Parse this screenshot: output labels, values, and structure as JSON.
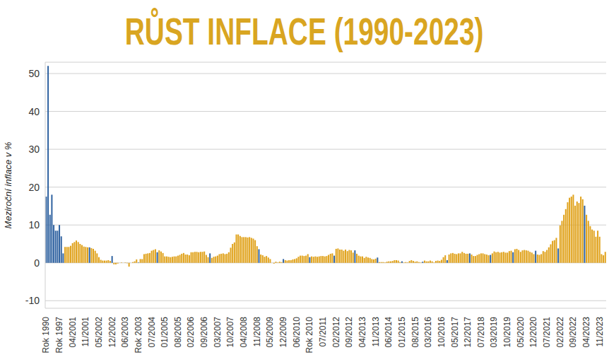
{
  "chart_data": {
    "type": "bar",
    "title": "RŮST INFLACE (1990-2023)",
    "y_label": "Meziroční inflace v %",
    "categories": [
      "Rok 1990",
      null,
      null,
      null,
      null,
      null,
      null,
      "Rok 1997",
      null,
      null,
      null,
      null,
      null,
      null,
      "04/2001",
      null,
      null,
      null,
      null,
      null,
      null,
      "11/2001",
      null,
      null,
      null,
      null,
      null,
      null,
      "05/2002",
      null,
      null,
      null,
      null,
      null,
      null,
      "12/2002",
      null,
      null,
      null,
      null,
      null,
      null,
      "06/2003",
      null,
      null,
      null,
      null,
      null,
      null,
      "Rok 2003",
      null,
      null,
      null,
      null,
      null,
      null,
      "07/2004",
      null,
      null,
      null,
      null,
      null,
      null,
      "01/2005",
      null,
      null,
      null,
      null,
      null,
      null,
      "08/2005",
      null,
      null,
      null,
      null,
      null,
      null,
      "02/2006",
      null,
      null,
      null,
      null,
      null,
      null,
      "09/2006",
      null,
      null,
      null,
      null,
      null,
      null,
      "03/2007",
      null,
      null,
      null,
      null,
      null,
      null,
      "10/2007",
      null,
      null,
      null,
      null,
      null,
      null,
      "04/2008",
      null,
      null,
      null,
      null,
      null,
      null,
      "11/2008",
      null,
      null,
      null,
      null,
      null,
      null,
      "05/2009",
      null,
      null,
      null,
      null,
      null,
      null,
      "12/2009",
      null,
      null,
      null,
      null,
      null,
      null,
      "06/2010",
      null,
      null,
      null,
      null,
      null,
      null,
      "Rok 2010",
      null,
      null,
      null,
      null,
      null,
      null,
      "07/2011",
      null,
      null,
      null,
      null,
      null,
      null,
      "02/2012",
      null,
      null,
      null,
      null,
      null,
      null,
      "09/2012",
      null,
      null,
      null,
      null,
      null,
      null,
      "04/2013",
      null,
      null,
      null,
      null,
      null,
      null,
      "11/2013",
      null,
      null,
      null,
      null,
      null,
      null,
      "06/2014",
      null,
      null,
      null,
      null,
      null,
      null,
      "01/2015",
      null,
      null,
      null,
      null,
      null,
      null,
      "08/2015",
      null,
      null,
      null,
      null,
      null,
      null,
      "03/2016",
      null,
      null,
      null,
      null,
      null,
      null,
      "10/2016",
      null,
      null,
      null,
      null,
      null,
      null,
      "05/2017",
      null,
      null,
      null,
      null,
      null,
      null,
      "12/2017",
      null,
      null,
      null,
      null,
      null,
      null,
      "07/2018",
      null,
      null,
      null,
      null,
      null,
      null,
      "03/2019",
      null,
      null,
      null,
      null,
      null,
      null,
      "10/2019",
      null,
      null,
      null,
      null,
      null,
      null,
      "05/2020",
      null,
      null,
      null,
      null,
      null,
      null,
      "12/2020",
      null,
      null,
      null,
      null,
      null,
      null,
      "07/2021",
      null,
      null,
      null,
      null,
      null,
      null,
      "02/2022",
      null,
      null,
      null,
      null,
      null,
      null,
      "09/2022",
      null,
      null,
      null,
      null,
      null,
      null,
      "04/2023",
      null,
      null,
      null,
      null,
      null,
      null,
      "11/2023",
      null,
      null,
      null
    ],
    "values": [
      17.5,
      52,
      12.7,
      18,
      10,
      8.5,
      8.5,
      10,
      7,
      2.5,
      4.2,
      4.2,
      4.2,
      4.5,
      5.2,
      5.5,
      5.9,
      5.5,
      5.0,
      4.7,
      4.3,
      4.2,
      4.1,
      4.1,
      3.9,
      3.7,
      3.2,
      2.5,
      1.5,
      0.8,
      0.6,
      0.6,
      0.6,
      0.7,
      0.5,
      1.8,
      -0.4,
      -0.4,
      -0.2,
      0.0,
      0.1,
      0.0,
      0.1,
      -0.1,
      -1.0,
      0.0,
      0.2,
      0.4,
      0.9,
      0.1,
      1.0,
      1.0,
      2.3,
      2.4,
      2.5,
      2.6,
      3.2,
      3.4,
      3.6,
      2.8,
      3.3,
      3.0,
      2.6,
      1.7,
      1.7,
      1.6,
      1.5,
      1.6,
      1.7,
      1.7,
      1.9,
      2.1,
      2.4,
      2.6,
      2.2,
      2.2,
      2.0,
      2.8,
      2.8,
      2.9,
      2.9,
      2.8,
      2.9,
      2.9,
      3.0,
      2.1,
      1.5,
      2.5,
      1.3,
      1.6,
      1.7,
      1.9,
      2.3,
      2.4,
      2.5,
      2.3,
      2.4,
      2.8,
      4.0,
      5.0,
      5.4,
      7.5,
      7.5,
      7.1,
      6.8,
      6.8,
      6.8,
      6.7,
      6.8,
      6.6,
      6.4,
      6.0,
      4.4,
      3.6,
      2.2,
      2.0,
      1.6,
      1.8,
      1.4,
      1.0,
      0.0,
      -0.2,
      0.3,
      0.1,
      0.3,
      0.2,
      1.0,
      0.7,
      0.6,
      0.7,
      0.7,
      0.9,
      1.0,
      1.2,
      1.6,
      1.9,
      1.9,
      1.8,
      1.9,
      2.3,
      1.5,
      1.7,
      1.6,
      1.7,
      1.6,
      1.7,
      1.8,
      1.8,
      1.7,
      1.8,
      2.1,
      2.4,
      2.5,
      1.9,
      3.7,
      3.8,
      3.5,
      3.5,
      3.2,
      3.5,
      3.1,
      3.4,
      3.3,
      2.7,
      3.3,
      2.4,
      1.9,
      1.7,
      1.7,
      1.3,
      1.6,
      1.4,
      1.3,
      1.0,
      0.9,
      1.1,
      1.4,
      0.2,
      0.2,
      0.2,
      0.1,
      0.3,
      0.4,
      0.4,
      0.5,
      0.7,
      0.7,
      0.6,
      0.2,
      0.4,
      0.1,
      0.2,
      0.1,
      0.5,
      0.7,
      0.5,
      0.3,
      0.4,
      0.2,
      0.1,
      0.3,
      0.6,
      0.4,
      0.4,
      0.6,
      0.4,
      0.1,
      0.5,
      0.6,
      0.5,
      0.8,
      1.5,
      2.0,
      0.7,
      2.2,
      2.5,
      2.6,
      2.4,
      2.3,
      2.5,
      2.5,
      2.9,
      2.6,
      2.4,
      2.4,
      2.5,
      2.2,
      1.8,
      1.8,
      2.1,
      2.3,
      2.5,
      2.5,
      2.3,
      2.2,
      2.0,
      2.1,
      2.5,
      3.0,
      2.8,
      2.9,
      2.7,
      2.8,
      2.9,
      2.7,
      2.7,
      3.1,
      3.2,
      2.8,
      3.6,
      3.7,
      3.4,
      2.9,
      3.3,
      3.4,
      3.3,
      3.2,
      2.9,
      2.7,
      2.3,
      3.2,
      2.2,
      2.1,
      2.3,
      3.1,
      2.9,
      3.4,
      4.1,
      4.9,
      5.8,
      6.0,
      6.6,
      3.8,
      9.9,
      11.1,
      12.7,
      14.2,
      16.0,
      17.2,
      17.5,
      18.0,
      15.1,
      16.2,
      15.8,
      17.5,
      16.8,
      15.1,
      12.7,
      11.1,
      9.7,
      8.8,
      8.5,
      6.9,
      8.5,
      6.9,
      2.3,
      2.0,
      2.9
    ],
    "colors": [
      "#2f62a0",
      "#2f62a0",
      "#2f62a0",
      "#2f62a0",
      "#2f62a0",
      "#2f62a0",
      "#2f62a0",
      "#2f62a0",
      "#2f62a0",
      "#2f62a0",
      "#e0a21b",
      "#e0a21b",
      "#e0a21b",
      "#e0a21b",
      "#e0a21b",
      "#e0a21b",
      "#e0a21b",
      "#e0a21b",
      "#e0a21b",
      "#e0a21b",
      "#e0a21b",
      "#e0a21b",
      "#e0a21b",
      "#2f62a0",
      "#e0a21b",
      "#e0a21b",
      "#e0a21b",
      "#e0a21b",
      "#e0a21b",
      "#e0a21b",
      "#e0a21b",
      "#e0a21b",
      "#e0a21b",
      "#e0a21b",
      "#e0a21b",
      "#2f62a0",
      "#e0a21b",
      "#e0a21b",
      "#e0a21b",
      "#e0a21b",
      "#e0a21b",
      "#e0a21b",
      "#e0a21b",
      "#e0a21b",
      "#e0a21b",
      "#e0a21b",
      "#e0a21b",
      "#e0a21b",
      "#e0a21b",
      "#2f62a0",
      "#e0a21b",
      "#e0a21b",
      "#e0a21b",
      "#e0a21b",
      "#e0a21b",
      "#e0a21b",
      "#e0a21b",
      "#e0a21b",
      "#e0a21b",
      "#2f62a0",
      "#e0a21b",
      "#e0a21b",
      "#e0a21b",
      "#e0a21b",
      "#e0a21b",
      "#e0a21b",
      "#e0a21b",
      "#e0a21b",
      "#e0a21b",
      "#e0a21b",
      "#e0a21b",
      "#e0a21b",
      "#e0a21b",
      "#e0a21b",
      "#e0a21b",
      "#e0a21b",
      "#e0a21b",
      "#e0a21b",
      "#e0a21b",
      "#e0a21b",
      "#e0a21b",
      "#e0a21b",
      "#e0a21b",
      "#e0a21b",
      "#e0a21b",
      "#e0a21b",
      "#e0a21b",
      "#2f62a0",
      "#e0a21b",
      "#e0a21b",
      "#e0a21b",
      "#e0a21b",
      "#e0a21b",
      "#e0a21b",
      "#e0a21b",
      "#e0a21b",
      "#e0a21b",
      "#e0a21b",
      "#e0a21b",
      "#e0a21b",
      "#e0a21b",
      "#e0a21b",
      "#e0a21b",
      "#e0a21b",
      "#e0a21b",
      "#e0a21b",
      "#e0a21b",
      "#e0a21b",
      "#e0a21b",
      "#e0a21b",
      "#e0a21b",
      "#e0a21b",
      "#e0a21b",
      "#2f62a0",
      "#e0a21b",
      "#e0a21b",
      "#e0a21b",
      "#e0a21b",
      "#e0a21b",
      "#e0a21b",
      "#e0a21b",
      "#e0a21b",
      "#e0a21b",
      "#e0a21b",
      "#e0a21b",
      "#e0a21b",
      "#2f62a0",
      "#e0a21b",
      "#e0a21b",
      "#e0a21b",
      "#e0a21b",
      "#e0a21b",
      "#e0a21b",
      "#e0a21b",
      "#e0a21b",
      "#e0a21b",
      "#e0a21b",
      "#e0a21b",
      "#e0a21b",
      "#e0a21b",
      "#2f62a0",
      "#e0a21b",
      "#e0a21b",
      "#e0a21b",
      "#e0a21b",
      "#e0a21b",
      "#e0a21b",
      "#e0a21b",
      "#e0a21b",
      "#e0a21b",
      "#e0a21b",
      "#e0a21b",
      "#e0a21b",
      "#2f62a0",
      "#e0a21b",
      "#e0a21b",
      "#e0a21b",
      "#e0a21b",
      "#e0a21b",
      "#e0a21b",
      "#e0a21b",
      "#e0a21b",
      "#e0a21b",
      "#e0a21b",
      "#2f62a0",
      "#e0a21b",
      "#e0a21b",
      "#e0a21b",
      "#e0a21b",
      "#e0a21b",
      "#e0a21b",
      "#e0a21b",
      "#e0a21b",
      "#e0a21b",
      "#e0a21b",
      "#e0a21b",
      "#2f62a0",
      "#e0a21b",
      "#e0a21b",
      "#e0a21b",
      "#e0a21b",
      "#e0a21b",
      "#e0a21b",
      "#e0a21b",
      "#e0a21b",
      "#e0a21b",
      "#e0a21b",
      "#e0a21b",
      "#e0a21b",
      "#2f62a0",
      "#e0a21b",
      "#e0a21b",
      "#e0a21b",
      "#e0a21b",
      "#e0a21b",
      "#e0a21b",
      "#e0a21b",
      "#e0a21b",
      "#e0a21b",
      "#e0a21b",
      "#2f62a0",
      "#e0a21b",
      "#e0a21b",
      "#e0a21b",
      "#e0a21b",
      "#e0a21b",
      "#e0a21b",
      "#e0a21b",
      "#e0a21b",
      "#e0a21b",
      "#e0a21b",
      "#e0a21b",
      "#e0a21b",
      "#2f62a0",
      "#e0a21b",
      "#e0a21b",
      "#e0a21b",
      "#e0a21b",
      "#e0a21b",
      "#e0a21b",
      "#e0a21b",
      "#e0a21b",
      "#e0a21b",
      "#e0a21b",
      "#e0a21b",
      "#2f62a0",
      "#e0a21b",
      "#e0a21b",
      "#e0a21b",
      "#e0a21b",
      "#e0a21b",
      "#e0a21b",
      "#e0a21b",
      "#e0a21b",
      "#e0a21b",
      "#e0a21b",
      "#2f62a0",
      "#e0a21b",
      "#e0a21b",
      "#e0a21b",
      "#e0a21b",
      "#e0a21b",
      "#e0a21b",
      "#e0a21b",
      "#e0a21b",
      "#e0a21b",
      "#e0a21b",
      "#e0a21b",
      "#2f62a0",
      "#e0a21b",
      "#e0a21b",
      "#e0a21b",
      "#e0a21b",
      "#e0a21b",
      "#e0a21b",
      "#e0a21b",
      "#e0a21b",
      "#e0a21b",
      "#e0a21b",
      "#e0a21b",
      "#2f62a0",
      "#e0a21b",
      "#e0a21b",
      "#e0a21b",
      "#e0a21b",
      "#e0a21b",
      "#e0a21b",
      "#e0a21b",
      "#e0a21b",
      "#e0a21b",
      "#e0a21b",
      "#e0a21b",
      "#2f62a0",
      "#e0a21b",
      "#e0a21b",
      "#e0a21b",
      "#e0a21b",
      "#e0a21b",
      "#e0a21b",
      "#e0a21b",
      "#e0a21b",
      "#e0a21b",
      "#e0a21b",
      "#e0a21b",
      "#e0a21b",
      "#e0a21b",
      "#2f62a0",
      "#e0a21b",
      "#e0a21b",
      "#e0a21b",
      "#e0a21b",
      "#e0a21b",
      "#e0a21b",
      "#e0a21b",
      "#e0a21b",
      "#e0a21b",
      "#e0a21b",
      "#e0a21b"
    ],
    "ylim": [
      -12,
      53
    ],
    "yticks": [
      -10,
      0,
      10,
      20,
      30,
      40,
      50
    ],
    "grid": true
  }
}
